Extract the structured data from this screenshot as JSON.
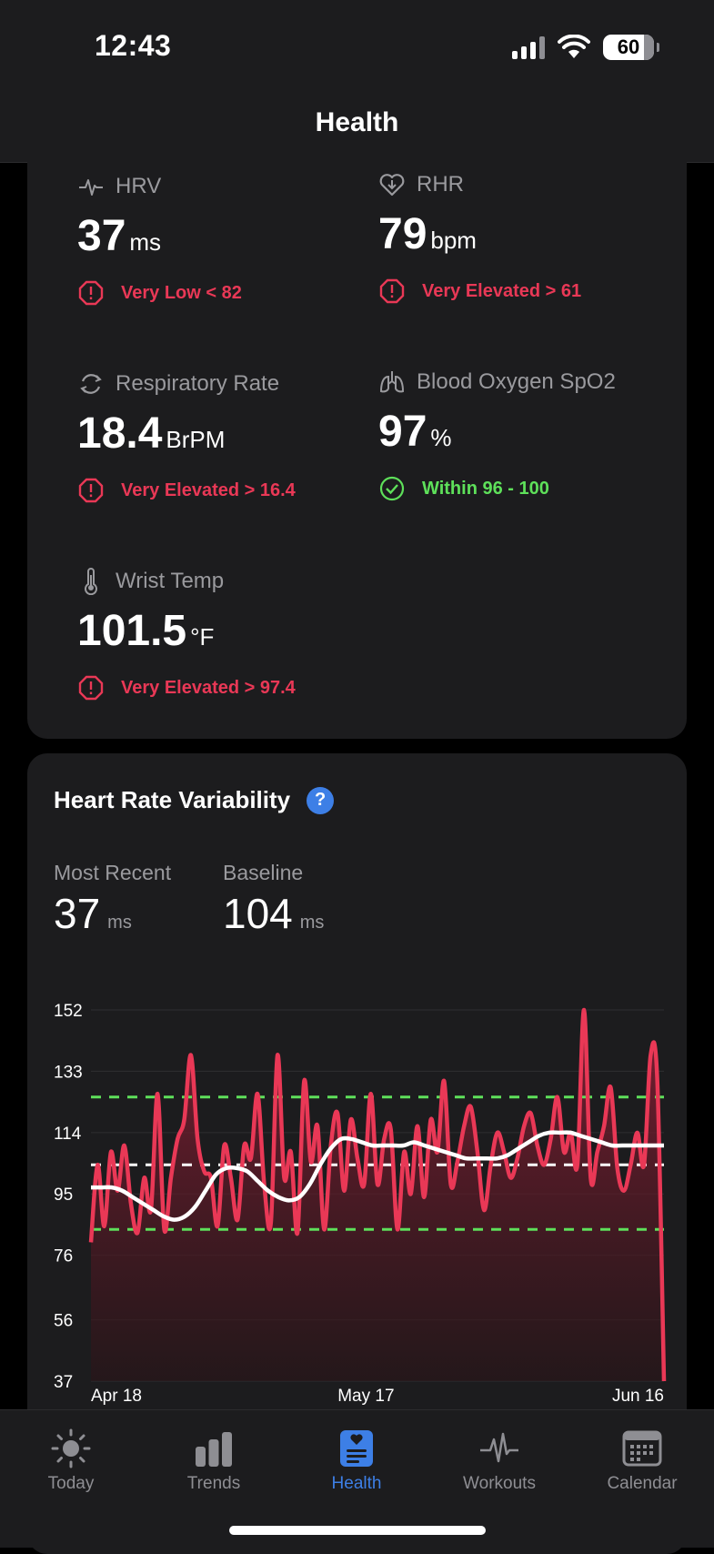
{
  "status_bar": {
    "time": "12:43",
    "battery": "60"
  },
  "header": {
    "title": "Health"
  },
  "metrics": [
    {
      "name": "HRV",
      "value": "37",
      "unit": "ms",
      "status": "Very Low < 82",
      "status_color": "#e93856",
      "icon": "heartbeat-icon"
    },
    {
      "name": "RHR",
      "value": "79",
      "unit": "bpm",
      "status": "Very Elevated > 61",
      "status_color": "#e93856",
      "icon": "heart-icon"
    },
    {
      "name": "Respiratory Rate",
      "value": "18.4",
      "unit": "BrPM",
      "status": "Very Elevated > 16.4",
      "status_color": "#e93856",
      "icon": "refresh-icon"
    },
    {
      "name": "Blood Oxygen SpO2",
      "value": "97",
      "unit": "%",
      "status": "Within 96 - 100",
      "status_color": "#5ee05a",
      "icon": "lungs-icon"
    },
    {
      "name": "Wrist Temp",
      "value": "101.5",
      "unit": "°F",
      "status": "Very Elevated > 97.4",
      "status_color": "#e93856",
      "icon": "thermometer-icon"
    }
  ],
  "hrv_card": {
    "title": "Heart Rate Variability",
    "help": "?",
    "most_recent": {
      "label": "Most Recent",
      "value": "37",
      "unit": "ms"
    },
    "baseline": {
      "label": "Baseline",
      "value": "104",
      "unit": "ms"
    }
  },
  "chart_data": {
    "type": "line",
    "x_labels": [
      "Apr 18",
      "May 17",
      "Jun 16"
    ],
    "yticks": [
      37,
      56,
      76,
      95,
      114,
      133,
      152
    ],
    "ylim": [
      37,
      152
    ],
    "series": [
      {
        "color": "#e93856",
        "values": [
          80,
          104,
          85,
          108,
          96,
          110,
          92,
          83,
          100,
          90,
          126,
          84,
          100,
          112,
          118,
          138,
          112,
          102,
          100,
          85,
          110,
          100,
          87,
          110,
          106,
          126,
          98,
          86,
          138,
          100,
          108,
          83,
          130,
          105,
          116,
          84,
          110,
          120,
          96,
          118,
          106,
          98,
          126,
          98,
          112,
          115,
          84,
          108,
          95,
          116,
          94,
          118,
          108,
          130,
          98,
          105,
          116,
          122,
          108,
          90,
          104,
          114,
          108,
          100,
          106,
          116,
          120,
          110,
          104,
          112,
          125,
          108,
          114,
          104,
          152,
          100,
          108,
          116,
          128,
          103,
          96,
          104,
          114,
          104,
          138,
          130,
          37
        ]
      },
      {
        "color": "#ffffff",
        "values": [
          97,
          97,
          97,
          96,
          94,
          92,
          90,
          88,
          87,
          88,
          91,
          96,
          101,
          103,
          103,
          102,
          99,
          96,
          94,
          93,
          94,
          98,
          104,
          109,
          112,
          112,
          111,
          110,
          110,
          110,
          110,
          111,
          110,
          109,
          108,
          107,
          106,
          106,
          106,
          106,
          107,
          109,
          111,
          113,
          114,
          114,
          114,
          113,
          112,
          111,
          110,
          110,
          110,
          110,
          110,
          110
        ]
      }
    ],
    "reference_lines": [
      {
        "value": 125,
        "color": "#5ee05a"
      },
      {
        "value": 104,
        "color": "#ffffff"
      },
      {
        "value": 84,
        "color": "#5ee05a"
      }
    ]
  },
  "tabs": [
    {
      "label": "Today",
      "icon": "sun-icon",
      "active": false
    },
    {
      "label": "Trends",
      "icon": "bar-chart-icon",
      "active": false
    },
    {
      "label": "Health",
      "icon": "health-icon",
      "active": true
    },
    {
      "label": "Workouts",
      "icon": "pulse-icon",
      "active": false
    },
    {
      "label": "Calendar",
      "icon": "calendar-icon",
      "active": false
    }
  ]
}
